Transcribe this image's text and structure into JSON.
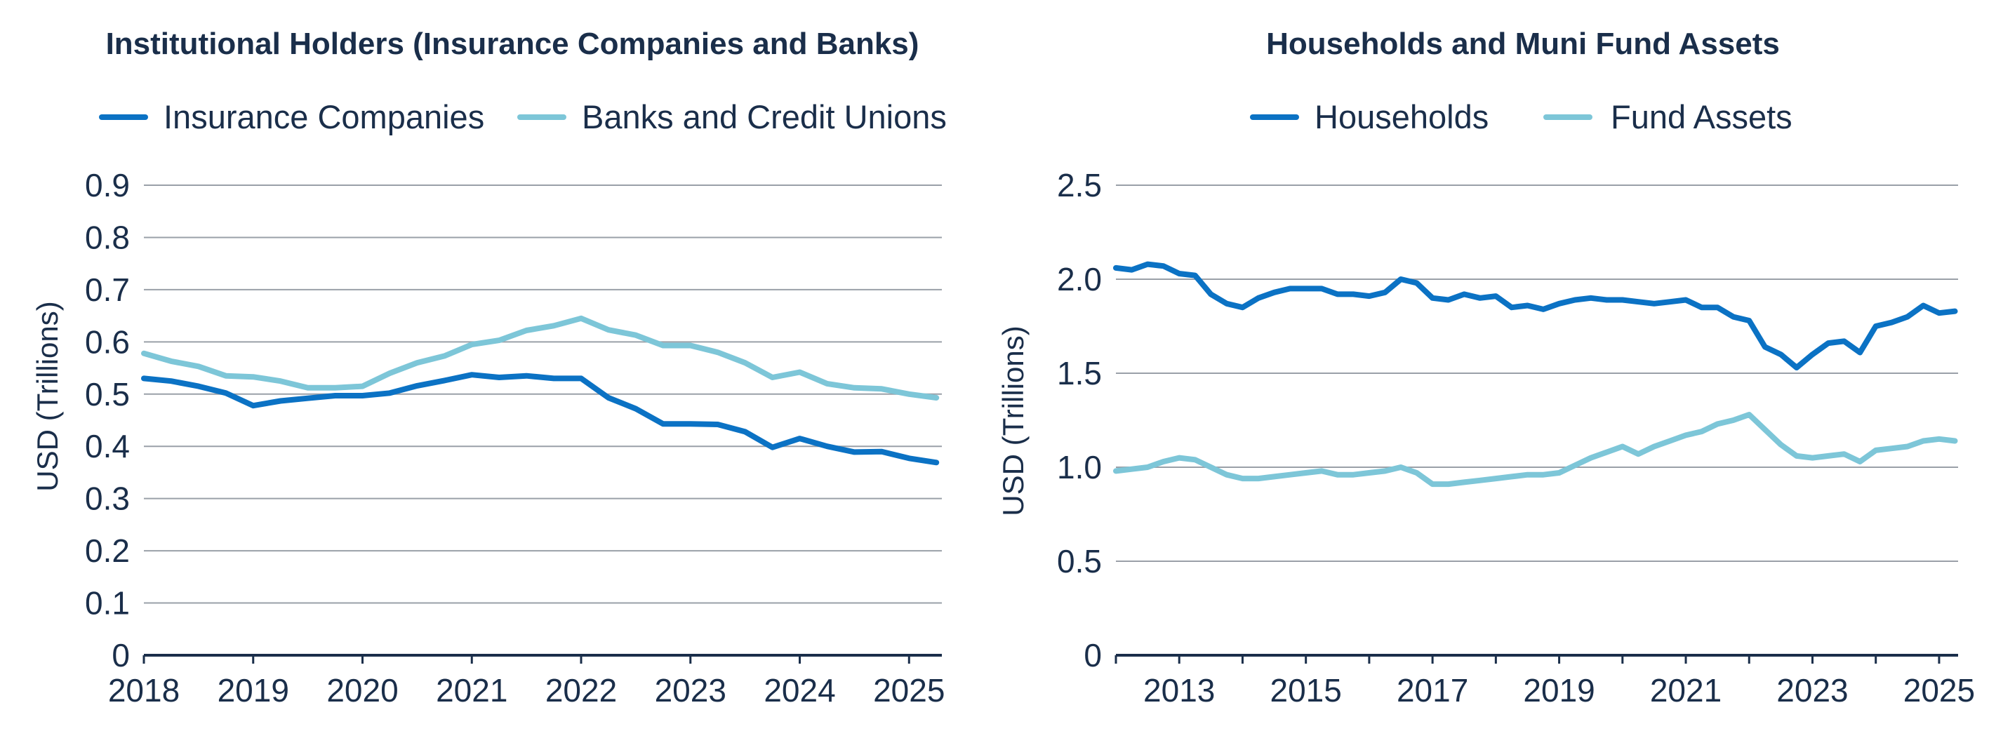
{
  "colors": {
    "dark_blue": "#0b72c4",
    "light_blue": "#7dc6d8",
    "text": "#1a2e4a"
  },
  "chart_data": [
    {
      "type": "line",
      "title": "Institutional Holders (Insurance Companies and Banks)",
      "ylabel": "USD (Trillions)",
      "xlabel": "",
      "xlim": [
        2018,
        2025.3
      ],
      "ylim": [
        0,
        0.9
      ],
      "yticks": [
        "0",
        "0.1",
        "0.2",
        "0.3",
        "0.4",
        "0.5",
        "0.6",
        "0.7",
        "0.8",
        "0.9"
      ],
      "yticks_values": [
        0,
        0.1,
        0.2,
        0.3,
        0.4,
        0.5,
        0.6,
        0.7,
        0.8,
        0.9
      ],
      "xticks": [
        "2018",
        "2019",
        "2020",
        "2021",
        "2022",
        "2023",
        "2024",
        "2025"
      ],
      "xticks_values": [
        2018,
        2019,
        2020,
        2021,
        2022,
        2023,
        2024,
        2025
      ],
      "legend": [
        "Insurance Companies",
        "Banks and Credit Unions"
      ],
      "series": [
        {
          "name": "Insurance Companies",
          "color": "#0b72c4",
          "x": [
            2018.0,
            2018.25,
            2018.5,
            2018.75,
            2019.0,
            2019.25,
            2019.5,
            2019.75,
            2020.0,
            2020.25,
            2020.5,
            2020.75,
            2021.0,
            2021.25,
            2021.5,
            2021.75,
            2022.0,
            2022.25,
            2022.5,
            2022.75,
            2023.0,
            2023.25,
            2023.5,
            2023.75,
            2024.0,
            2024.25,
            2024.5,
            2024.75,
            2025.0,
            2025.25
          ],
          "values": [
            0.53,
            0.525,
            0.515,
            0.502,
            0.478,
            0.487,
            0.492,
            0.497,
            0.497,
            0.502,
            0.516,
            0.526,
            0.537,
            0.532,
            0.535,
            0.53,
            0.53,
            0.493,
            0.472,
            0.443,
            0.443,
            0.442,
            0.428,
            0.398,
            0.415,
            0.4,
            0.389,
            0.39,
            0.377,
            0.369
          ]
        },
        {
          "name": "Banks and Credit Unions",
          "color": "#7dc6d8",
          "x": [
            2018.0,
            2018.25,
            2018.5,
            2018.75,
            2019.0,
            2019.25,
            2019.5,
            2019.75,
            2020.0,
            2020.25,
            2020.5,
            2020.75,
            2021.0,
            2021.25,
            2021.5,
            2021.75,
            2022.0,
            2022.25,
            2022.5,
            2022.75,
            2023.0,
            2023.25,
            2023.5,
            2023.75,
            2024.0,
            2024.25,
            2024.5,
            2024.75,
            2025.0,
            2025.25
          ],
          "values": [
            0.578,
            0.563,
            0.553,
            0.535,
            0.533,
            0.525,
            0.512,
            0.512,
            0.515,
            0.54,
            0.56,
            0.573,
            0.595,
            0.603,
            0.622,
            0.631,
            0.645,
            0.623,
            0.613,
            0.593,
            0.593,
            0.58,
            0.56,
            0.532,
            0.542,
            0.52,
            0.512,
            0.51,
            0.5,
            0.493
          ]
        }
      ]
    },
    {
      "type": "line",
      "title": "Households and Muni Fund Assets",
      "ylabel": "USD (Trillions)",
      "xlabel": "",
      "xlim": [
        2012,
        2025.3
      ],
      "ylim": [
        0,
        2.5
      ],
      "yticks": [
        "0",
        "0.5",
        "1.0",
        "1.5",
        "2.0",
        "2.5"
      ],
      "yticks_values": [
        0,
        0.5,
        1.0,
        1.5,
        2.0,
        2.5
      ],
      "xticks": [
        "2013",
        "2015",
        "2017",
        "2019",
        "2021",
        "2023",
        "2025"
      ],
      "xticks_values": [
        2013,
        2015,
        2017,
        2019,
        2021,
        2023,
        2025
      ],
      "minor_xticks": [
        2012,
        2014,
        2016,
        2018,
        2020,
        2022,
        2024
      ],
      "legend": [
        "Households",
        "Fund Assets"
      ],
      "series": [
        {
          "name": "Households",
          "color": "#0b72c4",
          "x": [
            2012.0,
            2012.25,
            2012.5,
            2012.75,
            2013.0,
            2013.25,
            2013.5,
            2013.75,
            2014.0,
            2014.25,
            2014.5,
            2014.75,
            2015.0,
            2015.25,
            2015.5,
            2015.75,
            2016.0,
            2016.25,
            2016.5,
            2016.75,
            2017.0,
            2017.25,
            2017.5,
            2017.75,
            2018.0,
            2018.25,
            2018.5,
            2018.75,
            2019.0,
            2019.25,
            2019.5,
            2019.75,
            2020.0,
            2020.25,
            2020.5,
            2020.75,
            2021.0,
            2021.25,
            2021.5,
            2021.75,
            2022.0,
            2022.25,
            2022.5,
            2022.75,
            2023.0,
            2023.25,
            2023.5,
            2023.75,
            2024.0,
            2024.25,
            2024.5,
            2024.75,
            2025.0,
            2025.25
          ],
          "values": [
            2.06,
            2.05,
            2.08,
            2.07,
            2.03,
            2.02,
            1.92,
            1.87,
            1.85,
            1.9,
            1.93,
            1.95,
            1.95,
            1.95,
            1.92,
            1.92,
            1.91,
            1.93,
            2.0,
            1.98,
            1.9,
            1.89,
            1.92,
            1.9,
            1.91,
            1.85,
            1.86,
            1.84,
            1.87,
            1.89,
            1.9,
            1.89,
            1.89,
            1.88,
            1.87,
            1.88,
            1.89,
            1.85,
            1.85,
            1.8,
            1.78,
            1.64,
            1.6,
            1.53,
            1.6,
            1.66,
            1.67,
            1.61,
            1.75,
            1.77,
            1.8,
            1.86,
            1.82,
            1.83
          ]
        },
        {
          "name": "Fund Assets",
          "color": "#7dc6d8",
          "x": [
            2012.0,
            2012.25,
            2012.5,
            2012.75,
            2013.0,
            2013.25,
            2013.5,
            2013.75,
            2014.0,
            2014.25,
            2014.5,
            2014.75,
            2015.0,
            2015.25,
            2015.5,
            2015.75,
            2016.0,
            2016.25,
            2016.5,
            2016.75,
            2017.0,
            2017.25,
            2017.5,
            2017.75,
            2018.0,
            2018.25,
            2018.5,
            2018.75,
            2019.0,
            2019.25,
            2019.5,
            2019.75,
            2020.0,
            2020.25,
            2020.5,
            2020.75,
            2021.0,
            2021.25,
            2021.5,
            2021.75,
            2022.0,
            2022.25,
            2022.5,
            2022.75,
            2023.0,
            2023.25,
            2023.5,
            2023.75,
            2024.0,
            2024.25,
            2024.5,
            2024.75,
            2025.0,
            2025.25
          ],
          "values": [
            0.98,
            0.99,
            1.0,
            1.03,
            1.05,
            1.04,
            1.0,
            0.96,
            0.94,
            0.94,
            0.95,
            0.96,
            0.97,
            0.98,
            0.96,
            0.96,
            0.97,
            0.98,
            1.0,
            0.97,
            0.91,
            0.91,
            0.92,
            0.93,
            0.94,
            0.95,
            0.96,
            0.96,
            0.97,
            1.01,
            1.05,
            1.08,
            1.11,
            1.07,
            1.11,
            1.14,
            1.17,
            1.19,
            1.23,
            1.25,
            1.28,
            1.2,
            1.12,
            1.06,
            1.05,
            1.06,
            1.07,
            1.03,
            1.09,
            1.1,
            1.11,
            1.14,
            1.15,
            1.14
          ]
        }
      ]
    }
  ]
}
